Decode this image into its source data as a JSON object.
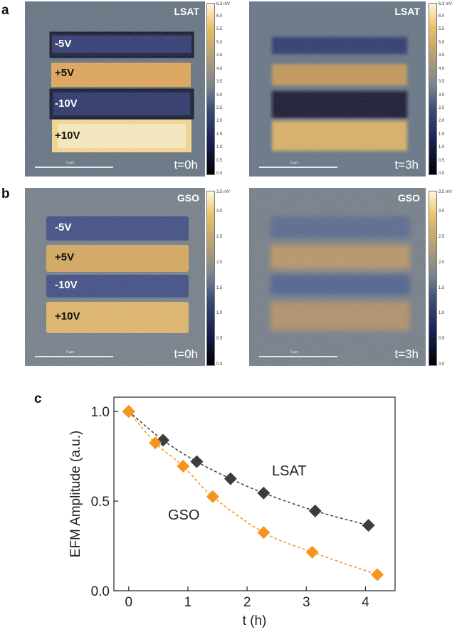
{
  "panels": {
    "a_letter": "a",
    "b_letter": "b",
    "c_letter": "c"
  },
  "maps": [
    {
      "id": "a-left",
      "material": "LSAT",
      "time": "t=0h",
      "labels": [
        "-5V",
        "+5V",
        "-10V",
        "+10V"
      ],
      "scale": "5 µm"
    },
    {
      "id": "a-right",
      "material": "LSAT",
      "time": "t=3h",
      "scale": "5 µm"
    },
    {
      "id": "b-left",
      "material": "GSO",
      "time": "t=0h",
      "labels": [
        "-5V",
        "+5V",
        "-10V",
        "+10V"
      ],
      "scale": "5 µm"
    },
    {
      "id": "b-right",
      "material": "GSO",
      "time": "t=3h",
      "scale": "5 µm"
    }
  ],
  "colorbars": {
    "a": {
      "top_label": "6.3 mV",
      "ticks": [
        "6.0",
        "5.5",
        "5.0",
        "4.5",
        "4.0",
        "3.5",
        "3.0",
        "2.5",
        "2.0",
        "1.5",
        "1.0",
        "0.5",
        "0.0"
      ]
    },
    "b": {
      "top_label": "3.5 mV",
      "ticks": [
        "3.0",
        "2.5",
        "2.0",
        "1.5",
        "1.0",
        "0.5",
        "0.0"
      ]
    }
  },
  "colors": {
    "lsat": "#3d3d3d",
    "gso": "#f7941d"
  },
  "chart_data": {
    "type": "scatter",
    "xlabel": "t (h)",
    "ylabel": "EFM Amplitude (a.u.)",
    "xlim": [
      -0.25,
      4.5
    ],
    "ylim": [
      0.0,
      1.08
    ],
    "xticks": [
      "0",
      "1",
      "2",
      "3",
      "4"
    ],
    "yticks": [
      "0.0",
      "0.5",
      "1.0"
    ],
    "series": [
      {
        "name": "LSAT",
        "marker": "diamond",
        "color": "#3d3d3d",
        "x": [
          0,
          0.58,
          1.15,
          1.72,
          2.28,
          3.15,
          4.05
        ],
        "y": [
          1.0,
          0.84,
          0.72,
          0.625,
          0.545,
          0.445,
          0.365
        ]
      },
      {
        "name": "GSO",
        "marker": "diamond",
        "color": "#f7941d",
        "x": [
          0,
          0.45,
          0.92,
          1.42,
          2.28,
          3.1,
          4.2
        ],
        "y": [
          1.0,
          0.825,
          0.695,
          0.525,
          0.325,
          0.215,
          0.09
        ]
      }
    ]
  }
}
